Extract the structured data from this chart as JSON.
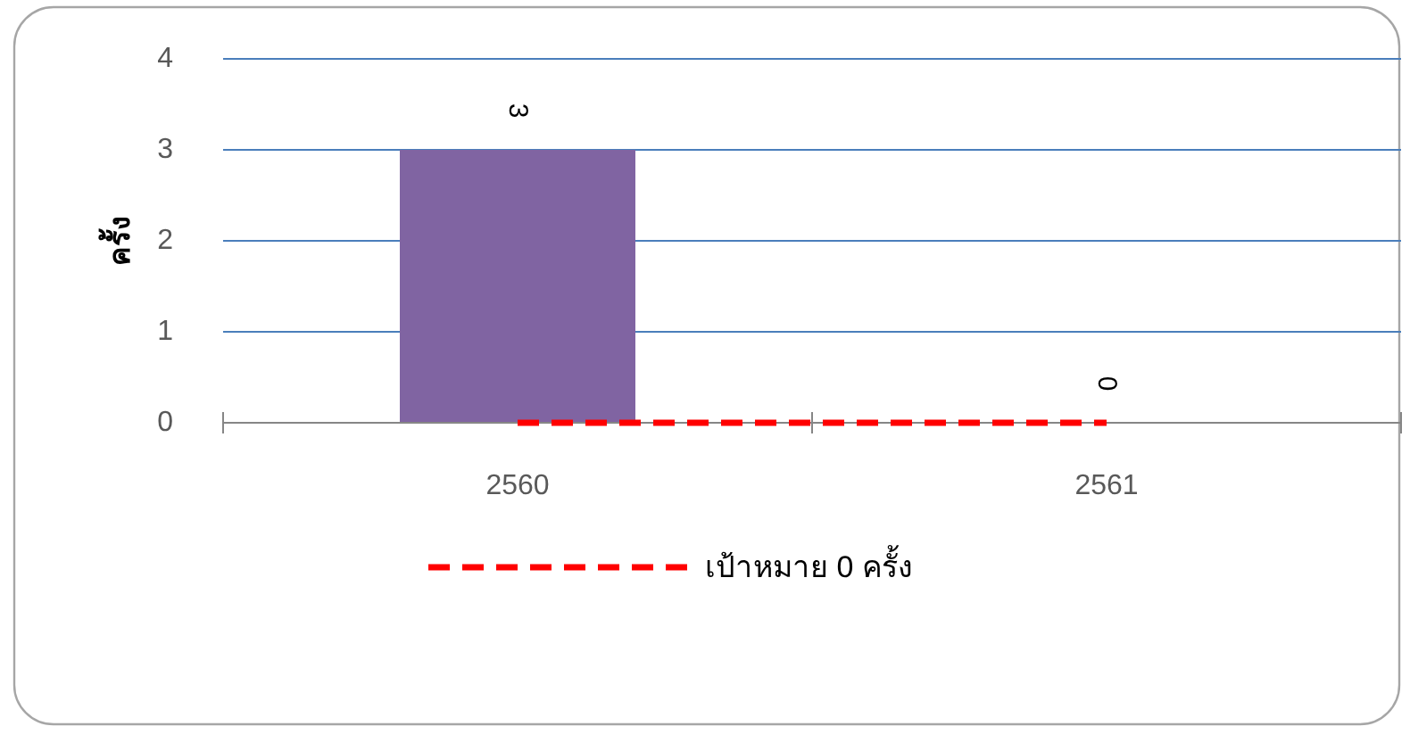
{
  "chart_data": {
    "type": "bar",
    "ylabel": "ครั้ง",
    "categories": [
      "2560",
      "2561"
    ],
    "series": [
      {
        "color": "#8064a2",
        "values": [
          3,
          0
        ],
        "value_labels": [
          "3",
          "0"
        ]
      },
      {
        "type": "line",
        "name": "เป้าหมาย 0 ครั้ง",
        "color": "#ff0000",
        "line_style": "dashed",
        "values": [
          0,
          0
        ]
      }
    ],
    "ylim": [
      0,
      4
    ],
    "yticks": [
      0,
      1,
      2,
      3,
      4
    ],
    "grid": "y",
    "legend": "bottom"
  }
}
